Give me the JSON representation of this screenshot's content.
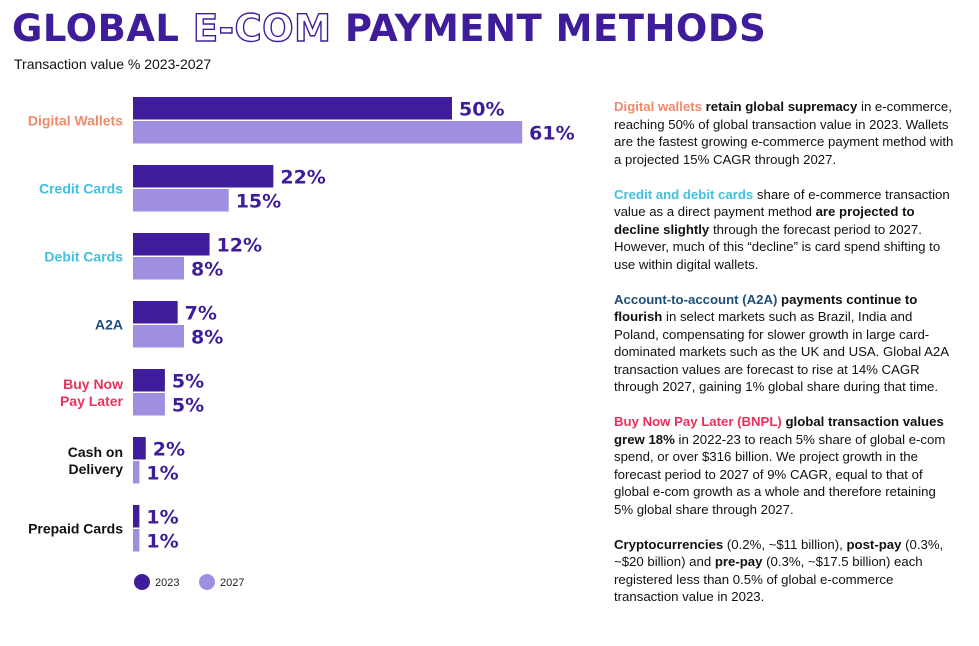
{
  "header": {
    "title_pre": "GLOBAL",
    "title_outline": "E-COM",
    "title_post": "PAYMENT METHODS",
    "subtitle": "Transaction value % 2023-2027"
  },
  "colors": {
    "series_2023": "#3f1d9a",
    "series_2027": "#a08ee0",
    "digital_wallets": "#f0886a",
    "cards": "#3ec0e0",
    "a2a": "#1e4f7a",
    "bnpl": "#e8315a",
    "default": "#111111"
  },
  "chart_data": {
    "type": "bar",
    "orientation": "horizontal",
    "title": "GLOBAL E-COM PAYMENT METHODS",
    "subtitle": "Transaction value % 2023-2027",
    "categories": [
      {
        "lines": [
          "Digital Wallets"
        ],
        "color": "#f0886a"
      },
      {
        "lines": [
          "Credit Cards"
        ],
        "color": "#3ec0e0"
      },
      {
        "lines": [
          "Debit Cards"
        ],
        "color": "#3ec0e0"
      },
      {
        "lines": [
          "A2A"
        ],
        "color": "#1e4f7a"
      },
      {
        "lines": [
          "Buy Now",
          "Pay Later"
        ],
        "color": "#e8315a"
      },
      {
        "lines": [
          "Cash on",
          "Delivery"
        ],
        "color": "#111111"
      },
      {
        "lines": [
          "Prepaid Cards"
        ],
        "color": "#111111"
      }
    ],
    "series": [
      {
        "name": "2023",
        "color": "#3f1d9a",
        "values": [
          50,
          22,
          12,
          7,
          5,
          2,
          1
        ],
        "labels": [
          "50%",
          "22%",
          "12%",
          "7%",
          "5%",
          "2%",
          "1%"
        ]
      },
      {
        "name": "2027",
        "color": "#a08ee0",
        "values": [
          61,
          15,
          8,
          8,
          5,
          1,
          1
        ],
        "labels": [
          "61%",
          "15%",
          "8%",
          "8%",
          "5%",
          "1%",
          "1%"
        ]
      }
    ],
    "xlim": [
      0,
      61
    ],
    "grid": false,
    "legend_position": "bottom-left"
  },
  "notes": [
    {
      "runs": [
        {
          "t": "Digital wallets",
          "s": "c-orange"
        },
        {
          "t": " ",
          "s": ""
        },
        {
          "t": "retain global supremacy",
          "s": "hl"
        },
        {
          "t": " in e-commerce, reaching 50% of global transaction value in 2023. Wallets are the fastest growing e-commerce payment method with a projected 15% CAGR through 2027.",
          "s": ""
        }
      ]
    },
    {
      "runs": [
        {
          "t": "Credit and debit cards",
          "s": "c-cyan"
        },
        {
          "t": " share of e-commerce transaction value as a direct payment method ",
          "s": ""
        },
        {
          "t": "are projected to decline slightly",
          "s": "hl"
        },
        {
          "t": " through the forecast period to 2027. However, much of this “decline” is card spend shifting to use within digital wallets.",
          "s": ""
        }
      ]
    },
    {
      "runs": [
        {
          "t": "Account-to-account (A2A)",
          "s": "c-navy"
        },
        {
          "t": " ",
          "s": ""
        },
        {
          "t": "payments continue to flourish",
          "s": "hl"
        },
        {
          "t": " in select markets such as Brazil, India and Poland, compensating for slower growth in large card-dominated markets such as the UK and USA. Global A2A transaction values are forecast to rise at 14% CAGR through 2027, gaining 1% global share during that time.",
          "s": ""
        }
      ]
    },
    {
      "runs": [
        {
          "t": "Buy Now Pay Later (BNPL)",
          "s": "c-pink"
        },
        {
          "t": " ",
          "s": ""
        },
        {
          "t": "global transaction values grew 18%",
          "s": "hl"
        },
        {
          "t": " in 2022-23 to reach 5% share of global e-com spend, or over $316 billion. We project growth in the forecast period to 2027 of 9% CAGR, equal to that of global e-com growth as a whole and therefore retaining 5% global share through 2027.",
          "s": ""
        }
      ]
    },
    {
      "runs": [
        {
          "t": "Cryptocurrencies",
          "s": "c-black"
        },
        {
          "t": " (0.2%, ~$11 billion), ",
          "s": ""
        },
        {
          "t": "post-pay",
          "s": "hl"
        },
        {
          "t": " (0.3%, ~$20 billion) and ",
          "s": ""
        },
        {
          "t": "pre-pay",
          "s": "hl"
        },
        {
          "t": " (0.3%, ~$17.5 billion) each registered less than 0.5% of global e-commerce transaction value in 2023.",
          "s": ""
        }
      ]
    }
  ]
}
